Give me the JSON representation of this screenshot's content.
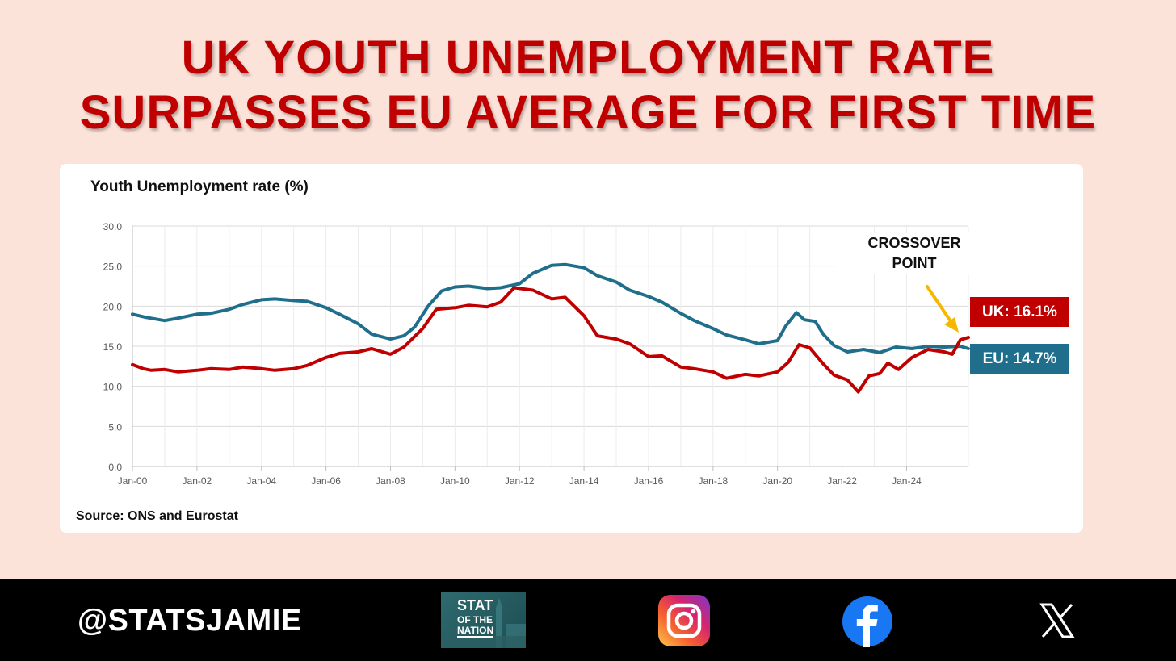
{
  "headline": {
    "line1": "UK YOUTH UNEMPLOYMENT RATE",
    "line2": "SURPASSES EU AVERAGE FOR FIRST TIME"
  },
  "chart_data": {
    "type": "line",
    "title": "Youth Unemployment rate (%)",
    "source": "Source: ONS and Eurostat",
    "annotation": "CROSSOVER POINT",
    "annotation_lines": [
      "CROSSOVER",
      "POINT"
    ],
    "ylim": [
      0,
      30
    ],
    "yticks": [
      "0.0",
      "5.0",
      "10.0",
      "15.0",
      "20.0",
      "25.0",
      "30.0"
    ],
    "xlim": [
      "Jan-00",
      "Dec-25"
    ],
    "xticks": [
      "Jan-00",
      "Jan-02",
      "Jan-04",
      "Jan-06",
      "Jan-08",
      "Jan-10",
      "Jan-12",
      "Jan-14",
      "Jan-16",
      "Jan-18",
      "Jan-20",
      "Jan-22",
      "Jan-24"
    ],
    "grid": true,
    "series": [
      {
        "name": "EU",
        "end_label": "EU: 14.7%",
        "color": "#1f6e8c",
        "points": [
          [
            "2000-01",
            19.0
          ],
          [
            "2000-06",
            18.6
          ],
          [
            "2001-01",
            18.2
          ],
          [
            "2001-06",
            18.5
          ],
          [
            "2002-01",
            19.0
          ],
          [
            "2002-06",
            19.1
          ],
          [
            "2003-01",
            19.6
          ],
          [
            "2003-06",
            20.2
          ],
          [
            "2004-01",
            20.8
          ],
          [
            "2004-06",
            20.9
          ],
          [
            "2005-01",
            20.7
          ],
          [
            "2005-06",
            20.6
          ],
          [
            "2006-01",
            19.8
          ],
          [
            "2006-06",
            19.0
          ],
          [
            "2007-01",
            17.8
          ],
          [
            "2007-06",
            16.5
          ],
          [
            "2008-01",
            15.9
          ],
          [
            "2008-06",
            16.3
          ],
          [
            "2008-10",
            17.4
          ],
          [
            "2009-03",
            20.0
          ],
          [
            "2009-08",
            21.9
          ],
          [
            "2010-01",
            22.4
          ],
          [
            "2010-06",
            22.5
          ],
          [
            "2011-01",
            22.2
          ],
          [
            "2011-06",
            22.3
          ],
          [
            "2012-01",
            22.8
          ],
          [
            "2012-06",
            24.1
          ],
          [
            "2013-01",
            25.1
          ],
          [
            "2013-06",
            25.2
          ],
          [
            "2014-01",
            24.8
          ],
          [
            "2014-06",
            23.8
          ],
          [
            "2015-01",
            23.0
          ],
          [
            "2015-06",
            22.0
          ],
          [
            "2016-01",
            21.2
          ],
          [
            "2016-06",
            20.5
          ],
          [
            "2017-01",
            19.1
          ],
          [
            "2017-06",
            18.2
          ],
          [
            "2018-01",
            17.2
          ],
          [
            "2018-06",
            16.4
          ],
          [
            "2019-01",
            15.8
          ],
          [
            "2019-06",
            15.3
          ],
          [
            "2020-01",
            15.7
          ],
          [
            "2020-04",
            17.5
          ],
          [
            "2020-08",
            19.2
          ],
          [
            "2020-11",
            18.3
          ],
          [
            "2021-03",
            18.1
          ],
          [
            "2021-06",
            16.5
          ],
          [
            "2021-10",
            15.1
          ],
          [
            "2022-03",
            14.3
          ],
          [
            "2022-09",
            14.6
          ],
          [
            "2023-03",
            14.2
          ],
          [
            "2023-09",
            14.9
          ],
          [
            "2024-03",
            14.7
          ],
          [
            "2024-09",
            15.0
          ],
          [
            "2025-03",
            14.9
          ],
          [
            "2025-09",
            15.0
          ],
          [
            "2025-12",
            14.7
          ]
        ]
      },
      {
        "name": "UK",
        "end_label": "UK: 16.1%",
        "color": "#c00000",
        "points": [
          [
            "2000-01",
            12.7
          ],
          [
            "2000-05",
            12.2
          ],
          [
            "2000-08",
            12.0
          ],
          [
            "2001-01",
            12.1
          ],
          [
            "2001-06",
            11.8
          ],
          [
            "2002-01",
            12.0
          ],
          [
            "2002-06",
            12.2
          ],
          [
            "2003-01",
            12.1
          ],
          [
            "2003-06",
            12.4
          ],
          [
            "2004-01",
            12.2
          ],
          [
            "2004-06",
            12.0
          ],
          [
            "2005-01",
            12.2
          ],
          [
            "2005-06",
            12.6
          ],
          [
            "2006-01",
            13.6
          ],
          [
            "2006-06",
            14.1
          ],
          [
            "2007-01",
            14.3
          ],
          [
            "2007-06",
            14.7
          ],
          [
            "2008-01",
            14.0
          ],
          [
            "2008-06",
            14.9
          ],
          [
            "2009-01",
            17.2
          ],
          [
            "2009-06",
            19.6
          ],
          [
            "2010-01",
            19.8
          ],
          [
            "2010-06",
            20.1
          ],
          [
            "2011-01",
            19.9
          ],
          [
            "2011-06",
            20.5
          ],
          [
            "2011-11",
            22.3
          ],
          [
            "2012-06",
            22.0
          ],
          [
            "2013-01",
            20.9
          ],
          [
            "2013-06",
            21.1
          ],
          [
            "2014-01",
            18.8
          ],
          [
            "2014-06",
            16.3
          ],
          [
            "2015-01",
            15.9
          ],
          [
            "2015-06",
            15.3
          ],
          [
            "2016-01",
            13.7
          ],
          [
            "2016-06",
            13.8
          ],
          [
            "2017-01",
            12.4
          ],
          [
            "2017-06",
            12.2
          ],
          [
            "2018-01",
            11.8
          ],
          [
            "2018-06",
            11.0
          ],
          [
            "2019-01",
            11.5
          ],
          [
            "2019-06",
            11.3
          ],
          [
            "2020-01",
            11.8
          ],
          [
            "2020-05",
            13.0
          ],
          [
            "2020-09",
            15.2
          ],
          [
            "2021-01",
            14.8
          ],
          [
            "2021-06",
            12.8
          ],
          [
            "2021-10",
            11.4
          ],
          [
            "2022-03",
            10.8
          ],
          [
            "2022-07",
            9.3
          ],
          [
            "2022-11",
            11.3
          ],
          [
            "2023-03",
            11.6
          ],
          [
            "2023-06",
            12.9
          ],
          [
            "2023-10",
            12.1
          ],
          [
            "2024-03",
            13.6
          ],
          [
            "2024-09",
            14.6
          ],
          [
            "2025-03",
            14.3
          ],
          [
            "2025-06",
            14.0
          ],
          [
            "2025-09",
            15.8
          ],
          [
            "2025-12",
            16.1
          ]
        ]
      }
    ]
  },
  "footer": {
    "handle": "@STATSJAMIE",
    "logo_line1": "STAT",
    "logo_line2": "OF THE",
    "logo_line3": "NATION"
  },
  "colors": {
    "headline": "#c00000",
    "uk": "#c00000",
    "eu": "#1f6e8c",
    "arrow": "#f5b800",
    "background": "#fbe3d9"
  }
}
